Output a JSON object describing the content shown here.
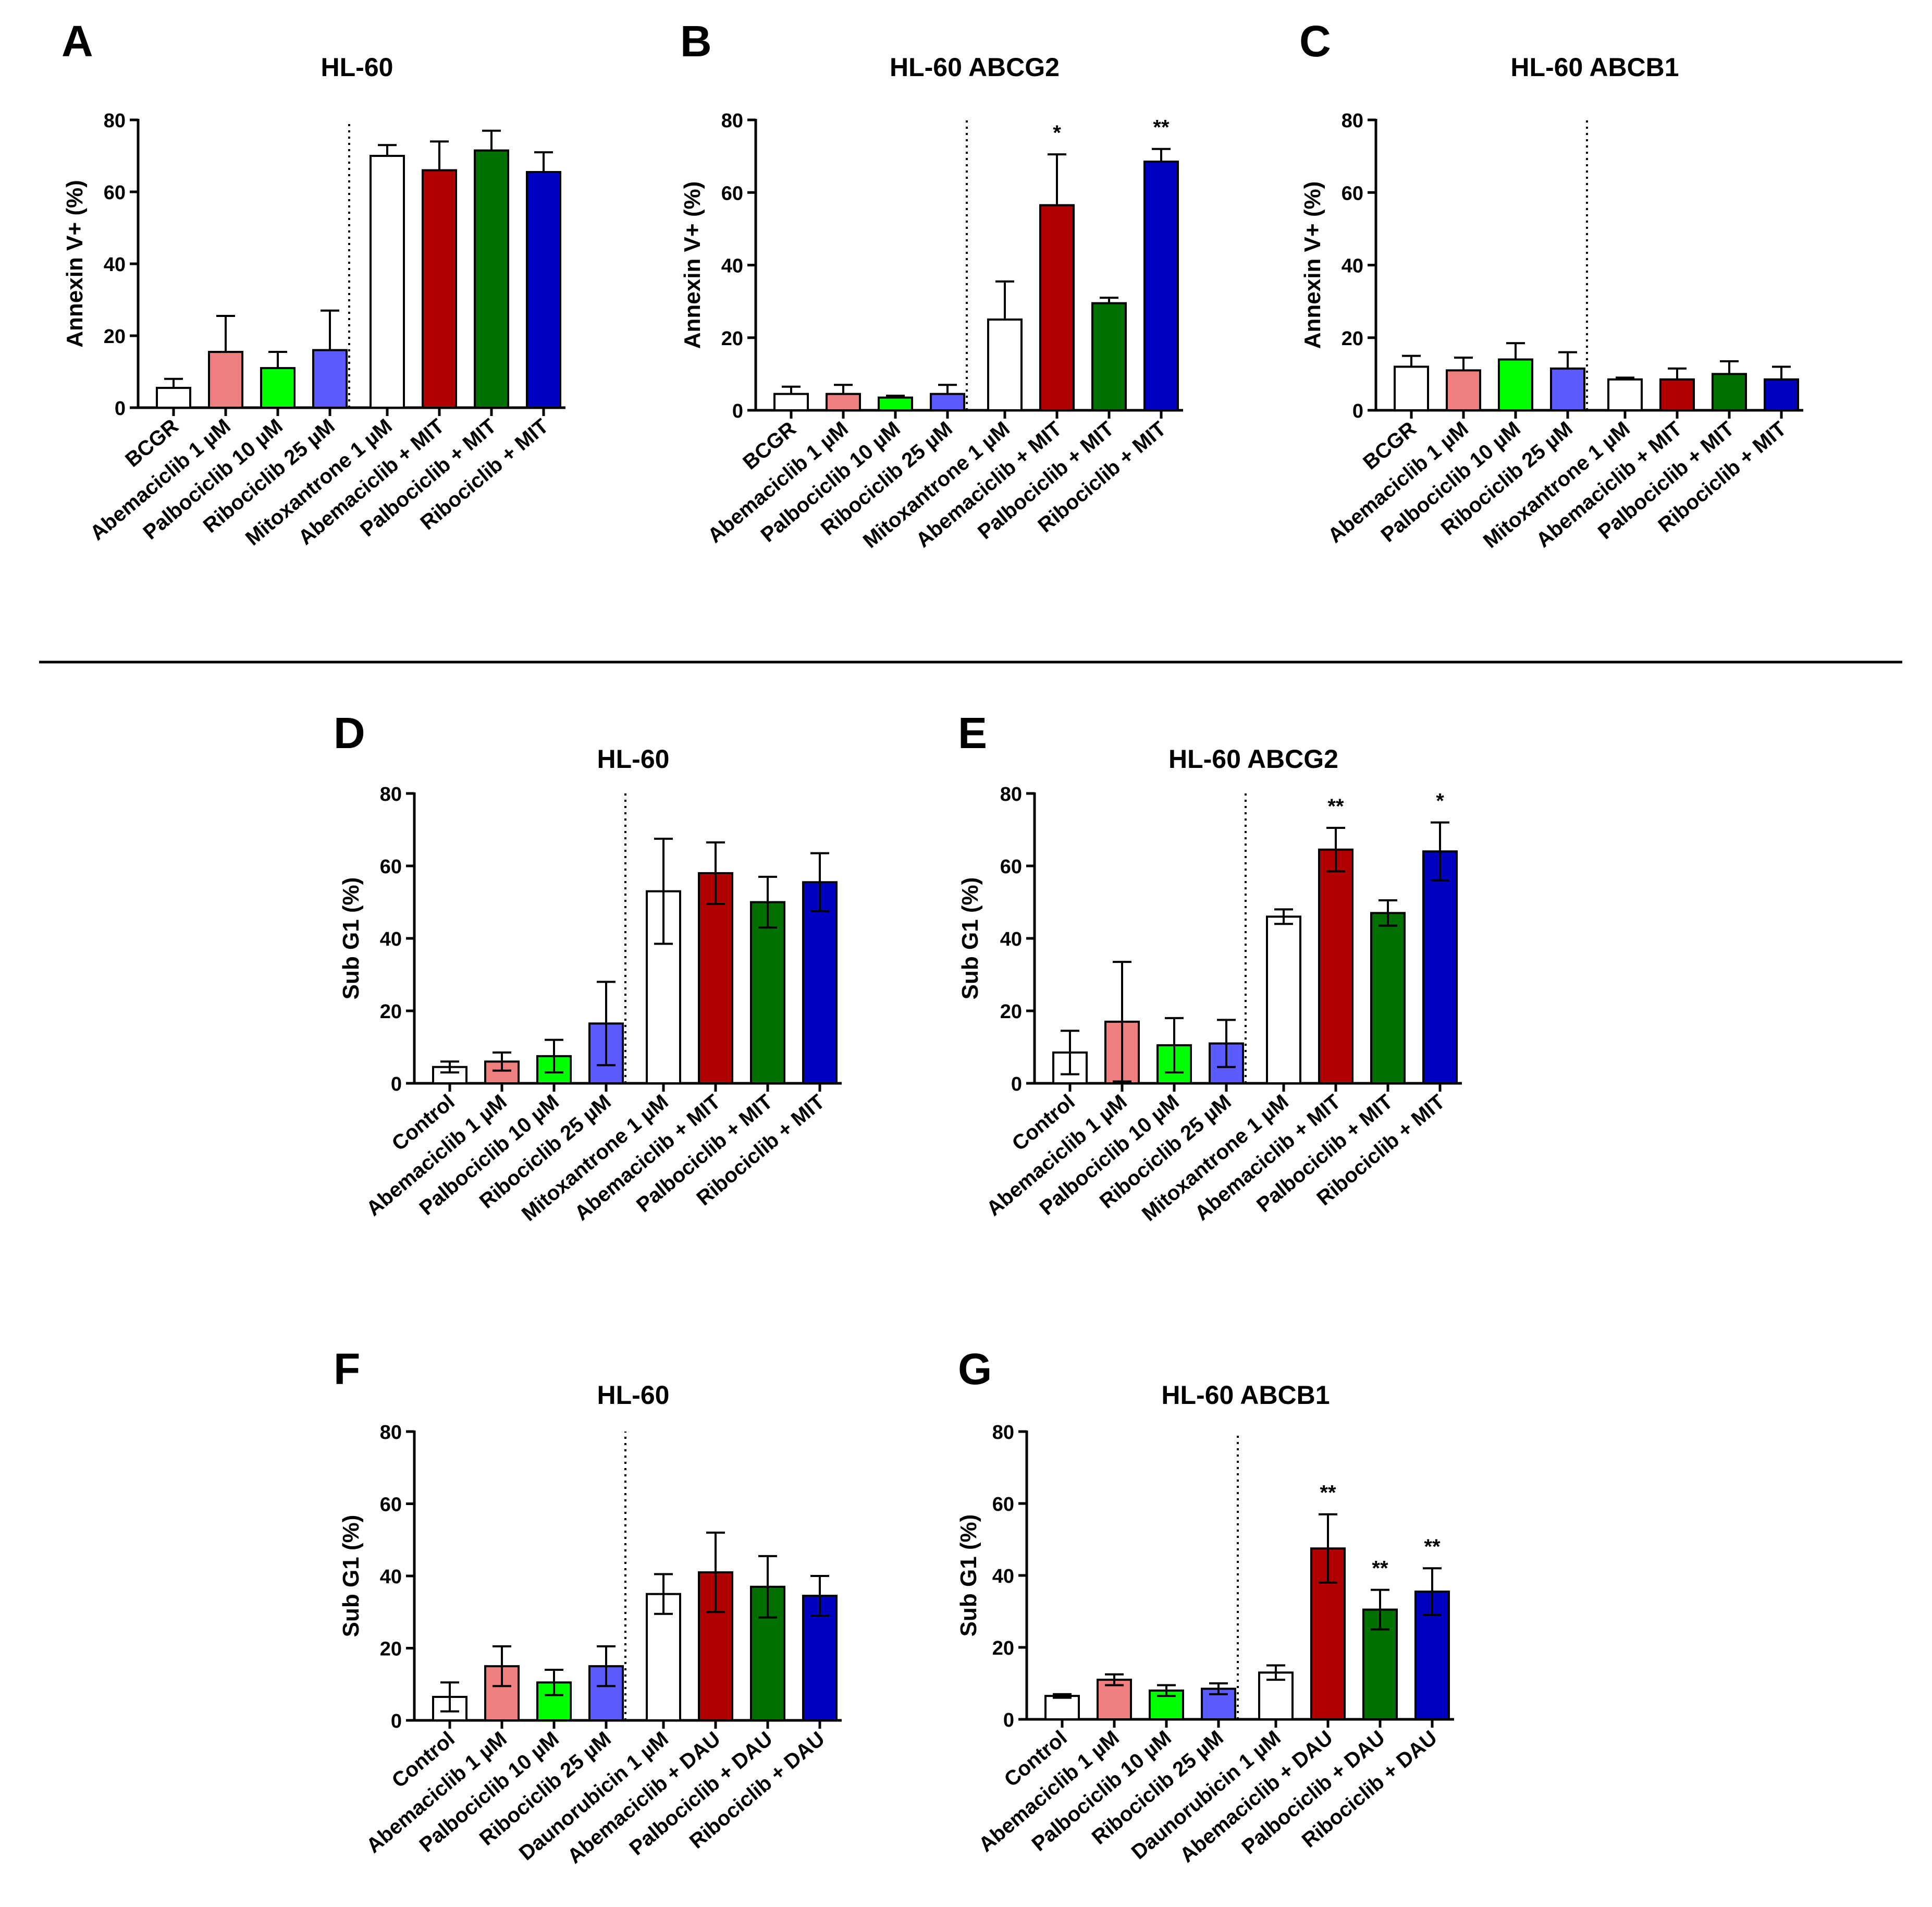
{
  "divider": "horizontal-rule",
  "colors": {
    "white": "#ffffff",
    "pink": "#f08080",
    "green": "#00ff00",
    "periwinkle": "#5b5bff",
    "red": "#b00000",
    "darkgreen": "#007000",
    "blue": "#0000c0"
  },
  "chart_data": [
    {
      "id": "A",
      "panel_letter": "A",
      "type": "bar",
      "title": "HL-60",
      "ylabel": "Annexin V+ (%)",
      "ylim": [
        0,
        80
      ],
      "yticks": [
        "0",
        "20",
        "40",
        "60",
        "80"
      ],
      "categories": [
        "BCGR",
        "Abemaciclib 1 µM",
        "Palbociclib 10 µM",
        "Ribociclib 25 µM",
        "Mitoxantrone 1 µM",
        "Abemaciclib + MIT",
        "Palbociclib + MIT",
        "Ribociclib + MIT"
      ],
      "values": [
        5.5,
        15.5,
        11,
        16,
        70,
        66,
        71.5,
        65.5
      ],
      "errors": [
        2.5,
        10,
        4.5,
        11,
        3,
        8,
        5.5,
        5.5
      ],
      "error_style": "up",
      "colors": [
        "white",
        "pink",
        "green",
        "periwinkle",
        "white",
        "red",
        "darkgreen",
        "blue"
      ],
      "significance": [
        "",
        "",
        "",
        "",
        "",
        "",
        "",
        ""
      ],
      "divider_after": 4
    },
    {
      "id": "B",
      "panel_letter": "B",
      "type": "bar",
      "title": "HL-60 ABCG2",
      "ylabel": "Annexin V+ (%)",
      "ylim": [
        0,
        80
      ],
      "yticks": [
        "0",
        "20",
        "40",
        "60",
        "80"
      ],
      "categories": [
        "BCGR",
        "Abemaciclib 1 µM",
        "Palbociclib 10 µM",
        "Ribociclib 25 µM",
        "Mitoxantrone 1 µM",
        "Abemaciclib + MIT",
        "Palbociclib + MIT",
        "Ribociclib + MIT"
      ],
      "values": [
        4.5,
        4.5,
        3.5,
        4.5,
        25,
        56.5,
        29.5,
        68.5
      ],
      "errors": [
        2,
        2.5,
        0.5,
        2.5,
        10.5,
        14,
        1.5,
        3.5
      ],
      "error_style": "up",
      "colors": [
        "white",
        "pink",
        "green",
        "periwinkle",
        "white",
        "red",
        "darkgreen",
        "blue"
      ],
      "significance": [
        "",
        "",
        "",
        "",
        "",
        "*",
        "",
        "**"
      ],
      "divider_after": 4
    },
    {
      "id": "C",
      "panel_letter": "C",
      "type": "bar",
      "title": "HL-60 ABCB1",
      "ylabel": "Annexin V+ (%)",
      "ylim": [
        0,
        80
      ],
      "yticks": [
        "0",
        "20",
        "40",
        "60",
        "80"
      ],
      "categories": [
        "BCGR",
        "Abemaciclib 1 µM",
        "Palbociclib 10 µM",
        "Ribociclib 25 µM",
        "Mitoxantrone 1 µM",
        "Abemaciclib + MIT",
        "Palbociclib + MIT",
        "Ribociclib + MIT"
      ],
      "values": [
        12,
        11,
        14,
        11.5,
        8.5,
        8.5,
        10,
        8.5
      ],
      "errors": [
        3,
        3.5,
        4.5,
        4.5,
        0.5,
        3,
        3.5,
        3.5
      ],
      "error_style": "up",
      "colors": [
        "white",
        "pink",
        "green",
        "periwinkle",
        "white",
        "red",
        "darkgreen",
        "blue"
      ],
      "significance": [
        "",
        "",
        "",
        "",
        "",
        "",
        "",
        ""
      ],
      "divider_after": 4
    },
    {
      "id": "D",
      "panel_letter": "D",
      "type": "bar",
      "title": "HL-60",
      "ylabel": "Sub G1 (%)",
      "ylim": [
        0,
        80
      ],
      "yticks": [
        "0",
        "20",
        "40",
        "60",
        "80"
      ],
      "categories": [
        "Control",
        "Abemaciclib 1 µM",
        "Palbociclib 10 µM",
        "Ribociclib 25 µM",
        "Mitoxantrone 1 µM",
        "Abemaciclib + MIT",
        "Palbociclib + MIT",
        "Ribociclib + MIT"
      ],
      "values": [
        4.5,
        6,
        7.5,
        16.5,
        53,
        58,
        50,
        55.5
      ],
      "errors": [
        1.5,
        2.5,
        4.5,
        11.5,
        14.5,
        8.5,
        7,
        8
      ],
      "error_style": "both",
      "colors": [
        "white",
        "pink",
        "green",
        "periwinkle",
        "white",
        "red",
        "darkgreen",
        "blue"
      ],
      "significance": [
        "",
        "",
        "",
        "",
        "",
        "",
        "",
        ""
      ],
      "divider_after": 4
    },
    {
      "id": "E",
      "panel_letter": "E",
      "type": "bar",
      "title": "HL-60 ABCG2",
      "ylabel": "Sub G1 (%)",
      "ylim": [
        0,
        80
      ],
      "yticks": [
        "0",
        "20",
        "40",
        "60",
        "80"
      ],
      "categories": [
        "Control",
        "Abemaciclib 1 µM",
        "Palbociclib 10 µM",
        "Ribociclib 25 µM",
        "Mitoxantrone 1 µM",
        "Abemaciclib + MIT",
        "Palbociclib + MIT",
        "Ribociclib + MIT"
      ],
      "values": [
        8.5,
        17,
        10.5,
        11,
        46,
        64.5,
        47,
        64
      ],
      "errors": [
        6,
        16.5,
        7.5,
        6.5,
        2,
        6,
        3.5,
        8
      ],
      "error_style": "both",
      "colors": [
        "white",
        "pink",
        "green",
        "periwinkle",
        "white",
        "red",
        "darkgreen",
        "blue"
      ],
      "significance": [
        "",
        "",
        "",
        "",
        "",
        "**",
        "",
        "*"
      ],
      "divider_after": 4
    },
    {
      "id": "F",
      "panel_letter": "F",
      "type": "bar",
      "title": "HL-60",
      "ylabel": "Sub G1 (%)",
      "ylim": [
        0,
        80
      ],
      "yticks": [
        "0",
        "20",
        "40",
        "60",
        "80"
      ],
      "categories": [
        "Control",
        "Abemaciclib 1 µM",
        "Palbociclib 10 µM",
        "Ribociclib 25 µM",
        "Daunorubicin 1 µM",
        "Abemaciclib + DAU",
        "Palbociclib + DAU",
        "Ribociclib + DAU"
      ],
      "values": [
        6.5,
        15,
        10.5,
        15,
        35,
        41,
        37,
        34.5
      ],
      "errors": [
        4,
        5.5,
        3.5,
        5.5,
        5.5,
        11,
        8.5,
        5.5
      ],
      "error_style": "both",
      "colors": [
        "white",
        "pink",
        "green",
        "periwinkle",
        "white",
        "red",
        "darkgreen",
        "blue"
      ],
      "significance": [
        "",
        "",
        "",
        "",
        "",
        "",
        "",
        ""
      ],
      "divider_after": 4
    },
    {
      "id": "G",
      "panel_letter": "G",
      "type": "bar",
      "title": "HL-60 ABCB1",
      "ylabel": "Sub G1 (%)",
      "ylim": [
        0,
        80
      ],
      "yticks": [
        "0",
        "20",
        "40",
        "60",
        "80"
      ],
      "categories": [
        "Control",
        "Abemaciclib 1 µM",
        "Palbociclib 10 µM",
        "Ribociclib 25 µM",
        "Daunorubicin 1 µM",
        "Abemaciclib + DAU",
        "Palbociclib + DAU",
        "Ribociclib + DAU"
      ],
      "values": [
        6.5,
        11,
        8,
        8.5,
        13,
        47.5,
        30.5,
        35.5
      ],
      "errors": [
        0.5,
        1.5,
        1.5,
        1.5,
        2,
        9.5,
        5.5,
        6.5
      ],
      "error_style": "both",
      "colors": [
        "white",
        "pink",
        "green",
        "periwinkle",
        "white",
        "red",
        "darkgreen",
        "blue"
      ],
      "significance": [
        "",
        "",
        "",
        "",
        "",
        "**",
        "**",
        "**"
      ],
      "divider_after": 4
    }
  ]
}
